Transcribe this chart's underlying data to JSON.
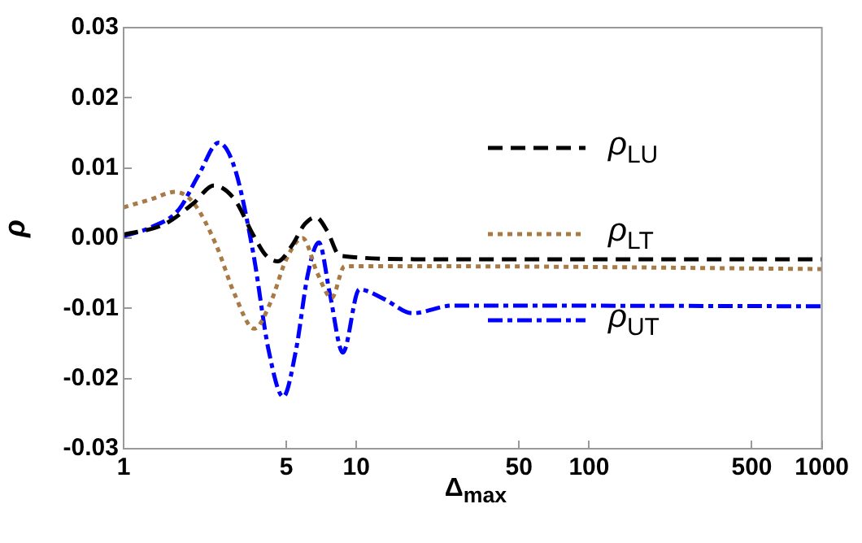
{
  "chart_data": {
    "type": "line",
    "xlabel": "Δ$_{max}$",
    "ylabel": "ρ",
    "log": "x",
    "xlim": [
      1,
      1000
    ],
    "xticks": [
      1,
      5,
      10,
      50,
      100,
      500,
      1000
    ],
    "ylim": [
      -0.03,
      0.03
    ],
    "yticks": [
      -0.03,
      -0.02,
      -0.01,
      {
        "value": 0,
        "label": "0.00"
      },
      0.01,
      0.02,
      0.03
    ],
    "grid": false,
    "legend": "right",
    "marker": "none",
    "series": [
      {
        "name": "ρ$_{LU}$",
        "color": "#000000",
        "line_style": "dashed",
        "x": [
          1,
          1.5,
          2,
          2.44,
          3,
          3.6,
          4.1,
          4.6,
          5.3,
          6,
          6.7,
          7.5,
          8.5,
          20,
          1000
        ],
        "values": [
          0.0005,
          0.002,
          0.005,
          0.0075,
          0.0055,
          0.0005,
          -0.0025,
          -0.0033,
          -0.001,
          0.002,
          0.003,
          0.001,
          -0.0025,
          -0.003,
          -0.003
        ]
      },
      {
        "name": "ρ$_{LT}$",
        "color": "#a87a45",
        "line_style": "dotted",
        "x": [
          1,
          1.3,
          1.67,
          2,
          2.5,
          3,
          3.64,
          4.3,
          5,
          5.88,
          6.8,
          7.84,
          8.9,
          20,
          1000
        ],
        "values": [
          0.0044,
          0.0055,
          0.0066,
          0.005,
          -0.001,
          -0.008,
          -0.0129,
          -0.009,
          -0.003,
          0,
          -0.005,
          -0.0085,
          -0.004,
          -0.004,
          -0.0044
        ]
      },
      {
        "name": "ρ$_{UT}$",
        "color": "#0000ff",
        "line_style": "dashdot",
        "x": [
          1,
          1.3,
          1.72,
          2.1,
          2.56,
          3,
          3.6,
          4.2,
          4.85,
          5.5,
          6.2,
          6.9,
          7.7,
          8.75,
          10.3,
          13.2,
          17.4,
          26,
          1000
        ],
        "values": [
          0.0003,
          0.0015,
          0.004,
          0.009,
          0.0136,
          0.01,
          -0.002,
          -0.016,
          -0.0226,
          -0.016,
          -0.005,
          -0.0006,
          -0.008,
          -0.0163,
          -0.0073,
          -0.0087,
          -0.0107,
          -0.0096,
          -0.0097
        ]
      }
    ]
  }
}
